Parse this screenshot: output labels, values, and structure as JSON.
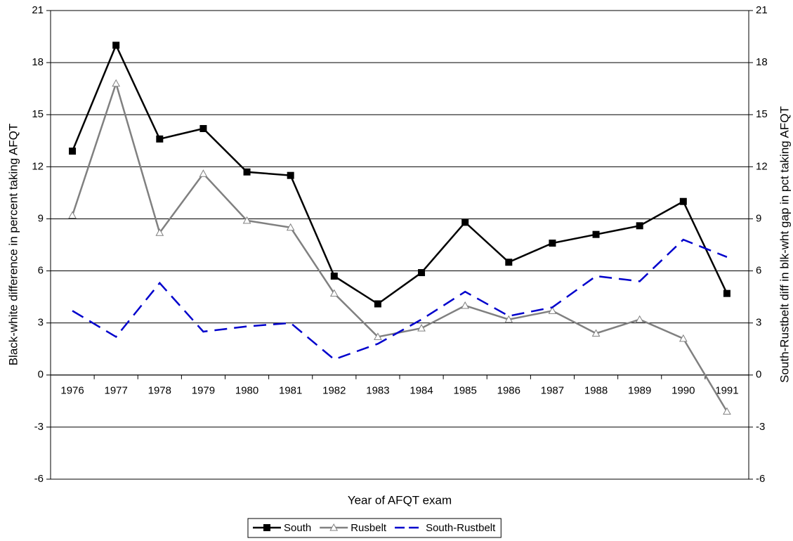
{
  "chart_data": {
    "type": "line",
    "x_label": "Year of AFQT exam",
    "y_label": "Black-white difference in percent taking AFQT",
    "y2_label": "South-Rustbelt diff in blk-wht gap in pct taking AFQT",
    "categories": [
      "1976",
      "1977",
      "1978",
      "1979",
      "1980",
      "1981",
      "1982",
      "1983",
      "1984",
      "1985",
      "1986",
      "1987",
      "1988",
      "1989",
      "1990",
      "1991"
    ],
    "series": [
      {
        "name": "South",
        "color": "#000000",
        "marker": "square",
        "values": [
          12.9,
          19.0,
          13.6,
          14.2,
          11.7,
          11.5,
          5.7,
          4.1,
          5.9,
          8.8,
          6.5,
          7.6,
          8.1,
          8.6,
          10.0,
          4.7
        ]
      },
      {
        "name": "Rusbelt",
        "color": "#808080",
        "marker": "triangle",
        "values": [
          9.2,
          16.8,
          8.2,
          11.6,
          8.9,
          8.5,
          4.7,
          2.2,
          2.7,
          4.0,
          3.2,
          3.7,
          2.4,
          3.2,
          2.1,
          -2.1
        ]
      },
      {
        "name": "South-Rustbelt",
        "color": "#0000cc",
        "dash": true,
        "axis": "y2",
        "values": [
          3.7,
          2.2,
          5.3,
          2.5,
          2.8,
          3.0,
          0.9,
          1.8,
          3.2,
          4.8,
          3.4,
          3.9,
          5.7,
          5.4,
          7.8,
          6.8
        ]
      }
    ],
    "ylim": [
      -6,
      21
    ],
    "yticks": [
      -6,
      -3,
      0,
      3,
      6,
      9,
      12,
      15,
      18,
      21
    ],
    "y2lim": [
      -6,
      21
    ],
    "y2ticks": [
      -6,
      -3,
      0,
      3,
      6,
      9,
      12,
      15,
      18,
      21
    ],
    "grid": true,
    "legend": "bottom"
  }
}
